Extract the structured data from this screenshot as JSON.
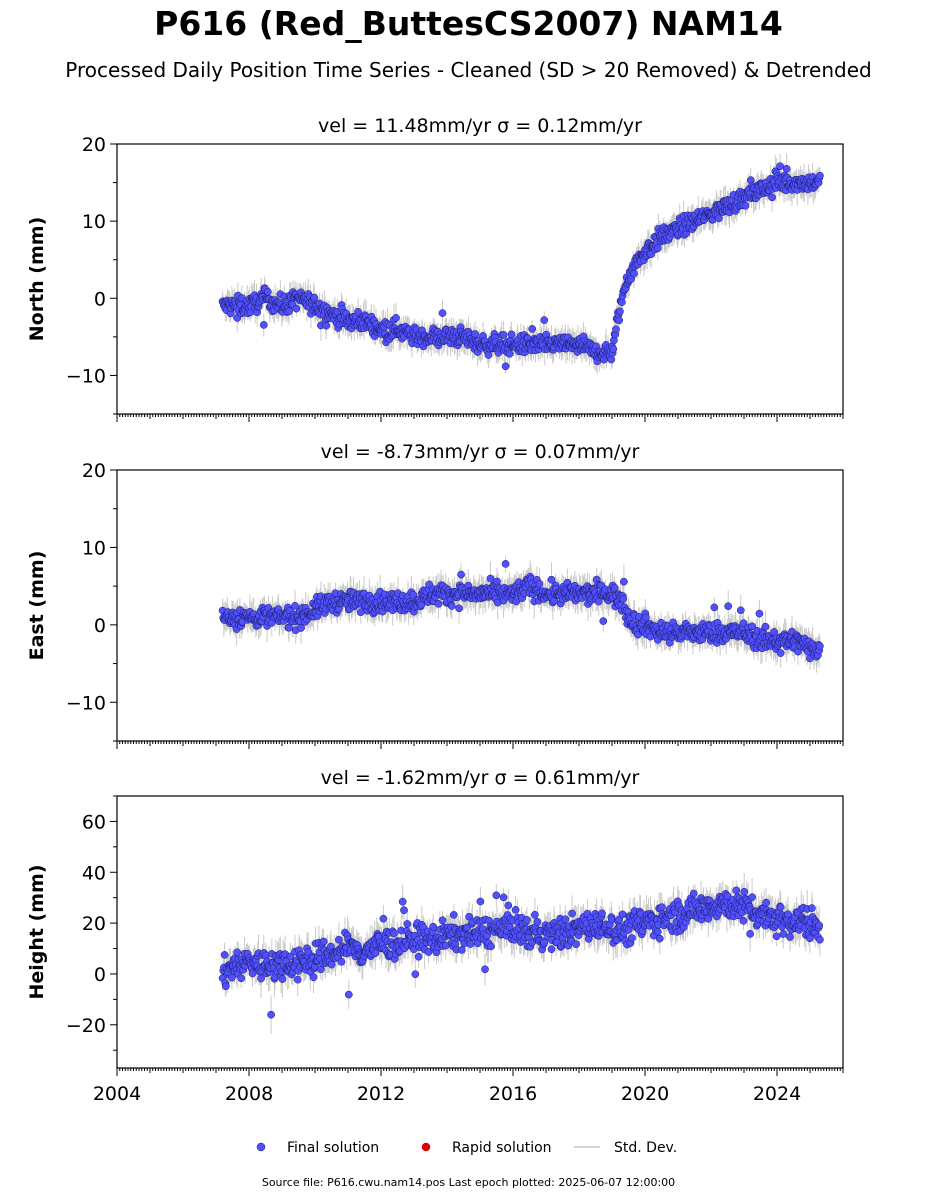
{
  "title": "P616 (Red_ButtesCS2007) NAM14",
  "subtitle": "Processed Daily Position Time Series - Cleaned (SD > 20 Removed) & Detrended",
  "source_note": "Source file: P616.cwu.nam14.pos  Last epoch plotted: 2025-06-07 12:00:00",
  "legend": [
    {
      "label": "Final solution",
      "color": "#5050ff"
    },
    {
      "label": "Rapid solution",
      "color": "#dd0000"
    },
    {
      "label": "Std. Dev.",
      "color": "#c8c8c8"
    }
  ],
  "chart_data": [
    {
      "type": "scatter",
      "title": "vel = 11.48mm/yr   σ = 0.12mm/yr",
      "ylabel": "North (mm)",
      "xlim": [
        2004,
        2026
      ],
      "ylim": [
        -15,
        20
      ],
      "yticks": [
        -10,
        0,
        10,
        20
      ],
      "x": [
        2007.2,
        2007.5,
        2008.0,
        2008.5,
        2009.0,
        2009.5,
        2010.0,
        2010.5,
        2011.0,
        2011.5,
        2012.0,
        2012.5,
        2013.0,
        2013.5,
        2014.0,
        2014.5,
        2015.0,
        2015.5,
        2016.0,
        2016.5,
        2017.0,
        2017.5,
        2018.0,
        2018.5,
        2019.0,
        2019.3,
        2019.5,
        2019.8,
        2020.0,
        2020.5,
        2021.0,
        2021.5,
        2022.0,
        2022.5,
        2023.0,
        2023.5,
        2024.0,
        2024.5,
        2025.0,
        2025.3
      ],
      "y": [
        -1,
        -1,
        -1,
        0,
        -1,
        0,
        -1,
        -2,
        -3,
        -3,
        -4,
        -4,
        -5,
        -5,
        -5,
        -5,
        -6,
        -6,
        -6,
        -6,
        -6,
        -6,
        -6,
        -7,
        -7,
        0,
        3,
        5,
        6,
        8,
        9,
        10,
        11,
        12,
        13,
        14,
        15,
        15,
        15,
        15
      ]
    },
    {
      "type": "scatter",
      "title": "vel = -8.73mm/yr   σ = 0.07mm/yr",
      "ylabel": "East (mm)",
      "xlim": [
        2004,
        2026
      ],
      "ylim": [
        -15,
        20
      ],
      "yticks": [
        -10,
        0,
        10,
        20
      ],
      "x": [
        2007.2,
        2007.5,
        2008.0,
        2008.5,
        2009.0,
        2009.5,
        2010.0,
        2010.5,
        2011.0,
        2011.5,
        2012.0,
        2012.5,
        2013.0,
        2013.5,
        2014.0,
        2014.5,
        2015.0,
        2015.5,
        2016.0,
        2016.5,
        2017.0,
        2017.5,
        2018.0,
        2018.5,
        2019.0,
        2019.3,
        2019.5,
        2019.8,
        2020.0,
        2020.5,
        2021.0,
        2021.5,
        2022.0,
        2022.5,
        2023.0,
        2023.5,
        2024.0,
        2024.5,
        2025.0,
        2025.3
      ],
      "y": [
        1,
        1,
        1,
        1,
        1,
        1,
        2,
        3,
        3,
        3,
        3,
        3,
        3,
        4,
        4,
        4,
        4,
        4,
        4,
        5,
        4,
        4,
        4,
        4,
        4,
        3,
        1,
        0,
        0,
        -1,
        -1,
        -1,
        -1,
        -1,
        -1,
        -2,
        -2,
        -2,
        -3,
        -3
      ]
    },
    {
      "type": "scatter",
      "title": "vel = -1.62mm/yr   σ = 0.61mm/yr",
      "ylabel": "Height (mm)",
      "xlim": [
        2004,
        2026
      ],
      "ylim": [
        -37,
        70
      ],
      "yticks": [
        -20,
        0,
        20,
        40,
        60
      ],
      "xticks": [
        2004,
        2008,
        2012,
        2016,
        2020,
        2024
      ],
      "x": [
        2007.2,
        2007.5,
        2008.0,
        2008.5,
        2009.0,
        2009.5,
        2010.0,
        2010.5,
        2011.0,
        2011.5,
        2012.0,
        2012.5,
        2013.0,
        2013.5,
        2014.0,
        2014.5,
        2015.0,
        2015.5,
        2016.0,
        2016.5,
        2017.0,
        2017.5,
        2018.0,
        2018.5,
        2019.0,
        2019.3,
        2019.5,
        2019.8,
        2020.0,
        2020.5,
        2021.0,
        2021.5,
        2022.0,
        2022.5,
        2023.0,
        2023.5,
        2024.0,
        2024.5,
        2025.0,
        2025.3
      ],
      "y": [
        0,
        3,
        5,
        3,
        4,
        5,
        5,
        8,
        10,
        9,
        12,
        12,
        14,
        13,
        15,
        16,
        16,
        17,
        19,
        16,
        15,
        16,
        18,
        19,
        18,
        17,
        18,
        20,
        20,
        22,
        23,
        25,
        27,
        28,
        26,
        24,
        22,
        21,
        20,
        18
      ]
    }
  ]
}
